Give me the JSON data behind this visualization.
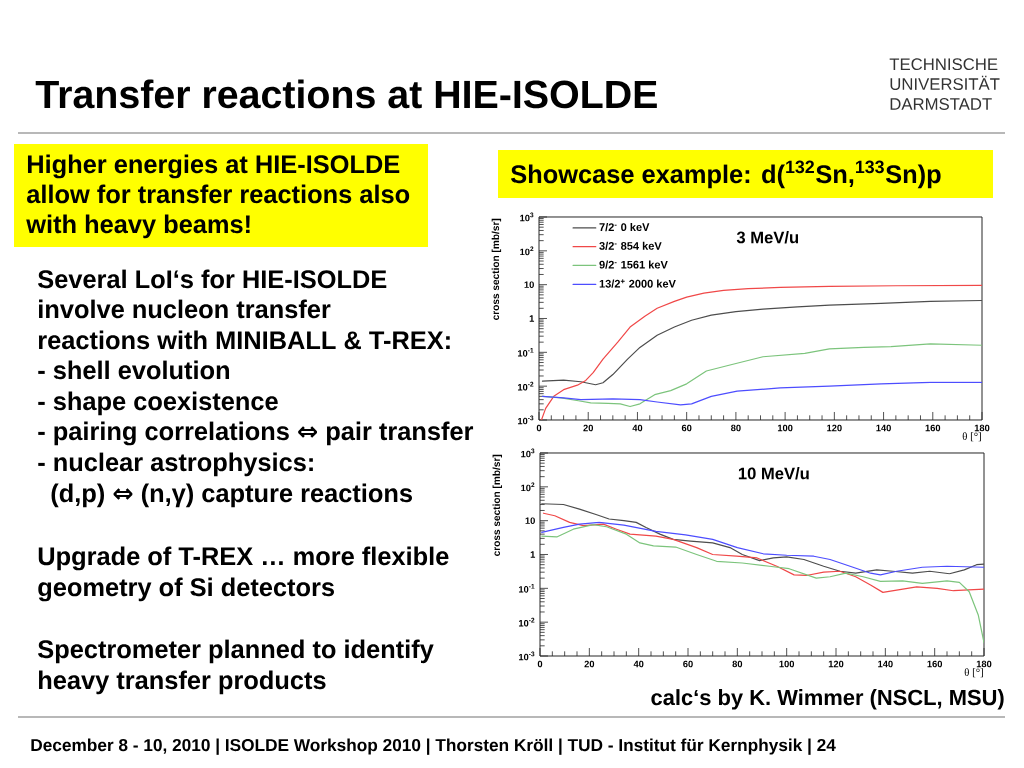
{
  "chart_data": [
    {
      "type": "other",
      "title": "Transfer reactions at HIE-ISOLDE",
      "annotations": [
        "Higher energies at HIE-ISOLDE",
        "allow for transfer reactions also",
        "with heavy beams!",
        "Several LoI‘s for HIE-ISOLDE",
        "involve nucleon transfer",
        "reactions with MINIBALL & T-REX:",
        "- shell evolution",
        "- shape coexistence",
        "- pairing correlations ⇔ pair transfer",
        "- nuclear astrophysics:",
        "(d,p) ⇔ (n,γ) capture reactions",
        "Upgrade of T-REX … more flexible",
        "geometry of Si detectors",
        "Spectrometer planned to identify",
        "heavy transfer products",
        "December 8 - 10, 2010 | ISOLDE Workshop 2010 | Thorsten Kröll | TUD - Institut für Kernphysik | 24",
        "TECHNISCHE UNIVERSITÄT DARMSTADT"
      ]
    },
    {
      "type": "line",
      "title": "Showcase example: d($^{132}$Sn,$^{133}$Sn)p",
      "xlabel": "θ [°]",
      "ylabel": "cross section [mb/sr]",
      "log": "y",
      "xlim": [
        0,
        180
      ],
      "ylim": [
        0.001,
        1000
      ],
      "xticks": [
        0,
        20,
        40,
        60,
        80,
        100,
        120,
        140,
        160,
        180
      ],
      "yticks": [
        {
          "value": 0.001,
          "label": "10$^{-3}$"
        },
        {
          "value": 0.01,
          "label": "10$^{-2}$"
        },
        {
          "value": 0.1,
          "label": "10$^{-1}$"
        },
        1,
        10,
        {
          "value": 100,
          "label": "10$^{2}$"
        },
        {
          "value": 1000,
          "label": "10$^{3}$"
        }
      ],
      "legend": "top left",
      "annotations": [
        "3 MeV/u"
      ],
      "series": [
        {
          "name": "7/2$^{-}$ 0 keV",
          "color": "#4d4d4d",
          "x": [
            1.4,
            10,
            17,
            23,
            26,
            30,
            36,
            41,
            48,
            55,
            62,
            70,
            80,
            91,
            105,
            118,
            139,
            159,
            180
          ],
          "values": [
            0.014,
            0.015,
            0.0135,
            0.011,
            0.0126,
            0.022,
            0.063,
            0.14,
            0.32,
            0.56,
            0.89,
            1.26,
            1.6,
            1.9,
            2.2,
            2.5,
            2.8,
            3.2,
            3.4
          ]
        },
        {
          "name": "3/2$^{-}$ 854 keV",
          "color": "#f04848",
          "x": [
            1,
            2.7,
            6,
            10,
            15.6,
            19,
            22,
            26,
            32,
            37,
            43,
            48,
            55,
            60,
            67,
            75,
            85,
            98,
            118,
            145,
            180
          ],
          "values": [
            0.001,
            0.0022,
            0.005,
            0.0079,
            0.0107,
            0.0148,
            0.025,
            0.063,
            0.2,
            0.56,
            1.17,
            2.0,
            3.2,
            4.3,
            5.6,
            6.8,
            7.6,
            8.3,
            8.9,
            9.3,
            9.5
          ]
        },
        {
          "name": "9/2$^{-}$ 1561 keV",
          "color": "#7cc47c",
          "x": [
            1.4,
            9,
            16,
            21,
            28,
            33,
            37,
            41,
            47,
            53.5,
            60,
            68,
            78,
            91,
            108,
            118,
            132,
            143,
            159,
            180
          ],
          "values": [
            0.005,
            0.0045,
            0.0037,
            0.0032,
            0.0031,
            0.003,
            0.0025,
            0.003,
            0.0056,
            0.0074,
            0.0117,
            0.028,
            0.043,
            0.074,
            0.093,
            0.126,
            0.14,
            0.148,
            0.178,
            0.162
          ]
        },
        {
          "name": "13/2$^{+}$ 2000 keV",
          "color": "#4d4dff",
          "x": [
            1.4,
            10,
            17,
            30,
            41,
            48,
            57.5,
            62,
            70,
            80.5,
            98,
            118,
            139,
            159,
            180
          ],
          "values": [
            0.005,
            0.0045,
            0.004,
            0.0042,
            0.004,
            0.0034,
            0.0028,
            0.003,
            0.005,
            0.0071,
            0.0089,
            0.01,
            0.0117,
            0.013,
            0.013
          ]
        }
      ]
    },
    {
      "type": "line",
      "xlabel": "θ [°]",
      "ylabel": "cross section [mb/sr]",
      "log": "y",
      "xlim": [
        0,
        180
      ],
      "ylim": [
        0.001,
        1000
      ],
      "xticks": [
        0,
        20,
        40,
        60,
        80,
        100,
        120,
        140,
        160,
        180
      ],
      "yticks": [
        {
          "value": 0.001,
          "label": "10$^{-3}$"
        },
        {
          "value": 0.01,
          "label": "10$^{-2}$"
        },
        {
          "value": 0.1,
          "label": "10$^{-1}$"
        },
        1,
        10,
        {
          "value": 100,
          "label": "10$^{2}$"
        },
        {
          "value": 1000,
          "label": "10$^{3}$"
        }
      ],
      "annotations": [
        "10 MeV/u",
        "calc‘s by K. Wimmer (NSCL, MSU)"
      ],
      "series": [
        {
          "color": "#4d4d4d",
          "x": [
            0.7,
            9.5,
            16,
            23,
            28,
            34,
            39,
            43,
            48.6,
            54,
            61,
            70,
            77,
            82,
            89,
            94.6,
            100,
            107,
            115,
            121.6,
            128,
            136.5,
            143,
            151,
            158,
            166,
            172,
            177,
            180
          ],
          "values": [
            31.6,
            30,
            22,
            15,
            11.2,
            10,
            8.9,
            6.3,
            4,
            2.8,
            2.5,
            2.2,
            1.6,
            1,
            0.66,
            0.79,
            0.85,
            0.71,
            0.45,
            0.32,
            0.28,
            0.35,
            0.32,
            0.28,
            0.32,
            0.27,
            0.35,
            0.5,
            0.52
          ]
        },
        {
          "color": "#f04848",
          "x": [
            1.4,
            6,
            12,
            17.6,
            25.7,
            31,
            36.5,
            47,
            54,
            63.5,
            70,
            79.7,
            88,
            96,
            103,
            108,
            115,
            121.6,
            128,
            134,
            139,
            144.6,
            152.7,
            161,
            167.6,
            180
          ],
          "values": [
            16.6,
            14,
            8.9,
            7.1,
            7.9,
            5.6,
            4,
            3.5,
            2.8,
            1.6,
            1.0,
            0.89,
            0.79,
            0.45,
            0.25,
            0.24,
            0.3,
            0.32,
            0.22,
            0.126,
            0.076,
            0.089,
            0.11,
            0.1,
            0.085,
            0.095
          ]
        },
        {
          "color": "#7cc47c",
          "x": [
            0.7,
            6.8,
            13.5,
            21.6,
            27,
            35,
            40.5,
            46,
            55,
            63.5,
            71.6,
            82,
            93,
            101,
            112,
            117.6,
            124,
            131,
            138,
            147,
            155,
            165,
            170,
            174,
            177.7,
            180
          ],
          "values": [
            3.5,
            3.3,
            5.6,
            7.6,
            6.6,
            4,
            2.2,
            1.8,
            1.66,
            1,
            0.63,
            0.56,
            0.45,
            0.38,
            0.2,
            0.22,
            0.28,
            0.22,
            0.16,
            0.166,
            0.14,
            0.166,
            0.15,
            0.079,
            0.016,
            0.0025
          ]
        },
        {
          "color": "#4d4dff",
          "x": [
            0.7,
            9.5,
            16,
            24,
            34,
            47,
            59,
            70,
            80,
            90.5,
            100,
            111,
            117.6,
            125.7,
            134,
            138,
            144.6,
            155,
            165,
            180
          ],
          "values": [
            4.5,
            6.3,
            7.9,
            8.9,
            7.4,
            4.8,
            3.8,
            2.8,
            1.6,
            1.05,
            0.95,
            0.89,
            0.71,
            0.45,
            0.28,
            0.25,
            0.32,
            0.42,
            0.45,
            0.42
          ]
        }
      ]
    }
  ]
}
